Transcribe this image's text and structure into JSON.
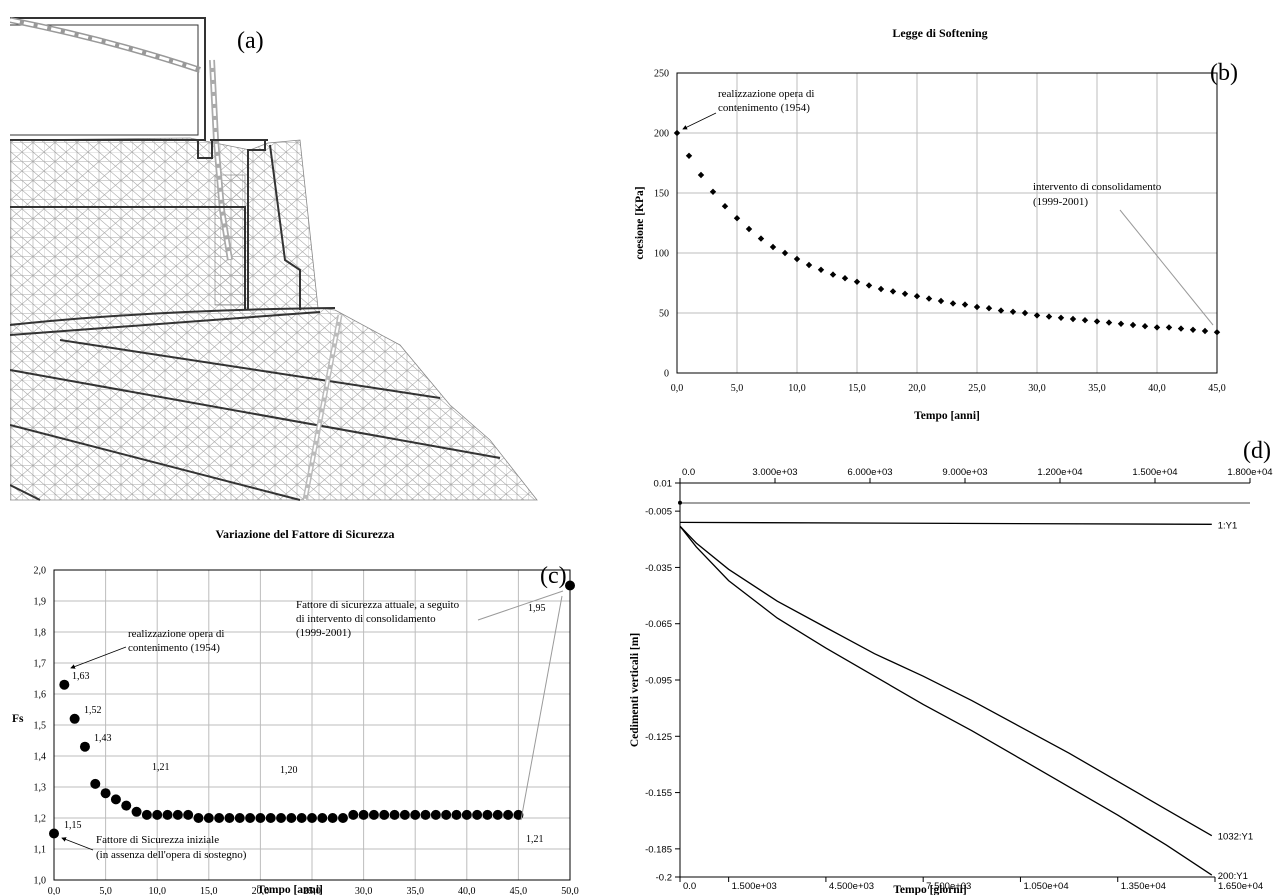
{
  "panels": {
    "a": {
      "label": "(a)"
    },
    "b": {
      "label": "(b)"
    },
    "c": {
      "label": "(c)"
    },
    "d": {
      "label": "(d)"
    }
  },
  "chart_data": [
    {
      "id": "b",
      "type": "scatter",
      "title": "Legge di Softening",
      "xlabel": "Tempo [anni]",
      "ylabel": "coesione [KPa]",
      "xlim": [
        0,
        45
      ],
      "ylim": [
        0,
        250
      ],
      "x_ticks": [
        "0,0",
        "5,0",
        "10,0",
        "15,0",
        "20,0",
        "25,0",
        "30,0",
        "35,0",
        "40,0",
        "45,0"
      ],
      "y_ticks": [
        "0",
        "50",
        "100",
        "150",
        "200",
        "250"
      ],
      "grid": true,
      "series": [
        {
          "x": [
            0,
            1,
            2,
            3,
            4,
            5,
            6,
            7,
            8,
            9,
            10,
            11,
            12,
            13,
            14,
            15,
            16,
            17,
            18,
            19,
            20,
            21,
            22,
            23,
            24,
            25,
            26,
            27,
            28,
            29,
            30,
            31,
            32,
            33,
            34,
            35,
            36,
            37,
            38,
            39,
            40,
            41,
            42,
            43,
            44,
            45
          ],
          "y": [
            200,
            181,
            165,
            151,
            139,
            129,
            120,
            112,
            105,
            100,
            95,
            90,
            86,
            82,
            79,
            76,
            73,
            70,
            68,
            66,
            64,
            62,
            60,
            58,
            57,
            55,
            54,
            52,
            51,
            50,
            48,
            47,
            46,
            45,
            44,
            43,
            42,
            41,
            40,
            39,
            38,
            38,
            37,
            36,
            35,
            34
          ]
        }
      ],
      "annotations": [
        {
          "text": "realizzazione opera di",
          "text2": "contenimento (1954)"
        },
        {
          "text": "intervento di consolidamento",
          "text2": "(1999-2001)"
        }
      ]
    },
    {
      "id": "c",
      "type": "scatter",
      "title": "Variazione del Fattore di Sicurezza",
      "xlabel": "Tempo [anni]",
      "ylabel": "Fs",
      "xlim": [
        0,
        50
      ],
      "ylim": [
        1.0,
        2.0
      ],
      "x_ticks": [
        "0,0",
        "5,0",
        "10,0",
        "15,0",
        "20,0",
        "25,0",
        "30,0",
        "35,0",
        "40,0",
        "45,0",
        "50,0"
      ],
      "y_ticks": [
        "1,0",
        "1,1",
        "1,2",
        "1,3",
        "1,4",
        "1,5",
        "1,6",
        "1,7",
        "1,8",
        "1,9",
        "2,0"
      ],
      "grid": true,
      "series": [
        {
          "x": [
            0,
            1,
            2,
            3,
            4,
            5,
            6,
            7,
            8,
            9,
            10,
            11,
            12,
            13,
            14,
            15,
            16,
            17,
            18,
            19,
            20,
            21,
            22,
            23,
            24,
            25,
            26,
            27,
            28,
            29,
            30,
            31,
            32,
            33,
            34,
            35,
            36,
            37,
            38,
            39,
            40,
            41,
            42,
            43,
            44,
            45,
            50
          ],
          "y": [
            1.15,
            1.63,
            1.52,
            1.43,
            1.31,
            1.28,
            1.26,
            1.24,
            1.22,
            1.21,
            1.21,
            1.21,
            1.21,
            1.21,
            1.2,
            1.2,
            1.2,
            1.2,
            1.2,
            1.2,
            1.2,
            1.2,
            1.2,
            1.2,
            1.2,
            1.2,
            1.2,
            1.2,
            1.2,
            1.21,
            1.21,
            1.21,
            1.21,
            1.21,
            1.21,
            1.21,
            1.21,
            1.21,
            1.21,
            1.21,
            1.21,
            1.21,
            1.21,
            1.21,
            1.21,
            1.21,
            1.95
          ]
        }
      ],
      "data_labels": [
        "1,15",
        "1,63",
        "1,52",
        "1,43",
        "1,21",
        "1,20",
        "1,21",
        "1,95"
      ],
      "annotations": [
        {
          "text": "realizzazione opera di",
          "text2": "contenimento (1954)"
        },
        {
          "text": "Fattore di sicurezza attuale, a seguito",
          "text2": "di intervento di consolidamento",
          "text3": "(1999-2001)"
        },
        {
          "text": "Fattore di Sicurezza iniziale",
          "text2": "(in assenza dell'opera di sostegno)"
        }
      ]
    },
    {
      "id": "d",
      "type": "line",
      "xlabel": "Tempo [giorni]",
      "ylabel": "Cedimenti verticali [m]",
      "xlim": [
        0,
        16500
      ],
      "top_xlim": [
        0,
        18000
      ],
      "ylim": [
        -0.2,
        0.01
      ],
      "top_x_ticks": [
        "0.0",
        "3.000e+03",
        "6.000e+03",
        "9.000e+03",
        "1.200e+04",
        "1.500e+04",
        "1.800e+04"
      ],
      "bottom_x_ticks": [
        "0.0",
        "1.500e+03",
        "4.500e+03",
        "7.500e+03",
        "1.050e+04",
        "1.350e+04",
        "1.650e+04"
      ],
      "y_ticks": [
        "0.01",
        "-0.005",
        "-0.035",
        "-0.065",
        "-0.095",
        "-0.125",
        "-0.155",
        "-0.185",
        "-0.2"
      ],
      "grid": false,
      "series": [
        {
          "name": "1:Y1",
          "x": [
            0,
            16400
          ],
          "y": [
            -0.011,
            -0.012
          ]
        },
        {
          "name": "1032:Y1",
          "x": [
            0,
            500,
            1500,
            3000,
            4500,
            6000,
            7500,
            9000,
            10500,
            12000,
            13500,
            15000,
            16400
          ],
          "y": [
            -0.013,
            -0.022,
            -0.036,
            -0.053,
            -0.067,
            -0.081,
            -0.093,
            -0.106,
            -0.12,
            -0.134,
            -0.149,
            -0.164,
            -0.178
          ]
        },
        {
          "name": "200:Y1",
          "x": [
            0,
            500,
            1500,
            3000,
            4500,
            6000,
            7500,
            9000,
            10500,
            12000,
            13500,
            15000,
            16400
          ],
          "y": [
            -0.013,
            -0.024,
            -0.042,
            -0.062,
            -0.078,
            -0.093,
            -0.108,
            -0.122,
            -0.137,
            -0.152,
            -0.167,
            -0.183,
            -0.199
          ]
        }
      ]
    }
  ]
}
